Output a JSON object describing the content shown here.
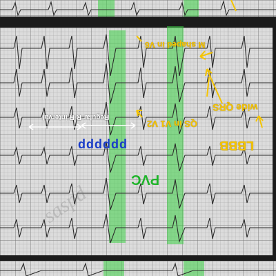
{
  "annotations": {
    "m_shaped": "M shaped in V6",
    "wide_qrs": "wide QRS",
    "lbbb": "LBBB",
    "qs_v1v2": "QS in V1 V2",
    "regular_rr": "Regular R-R interval",
    "p_waves": "pppppp",
    "pvc": "PVC"
  },
  "colors": {
    "annotation_yellow": "#f5c400",
    "highlight_green": "#3cd246",
    "p_wave_blue": "#1a3cc8",
    "pvc_green": "#1fb42a",
    "ecg_trace": "#2a2a2a"
  },
  "icons": {
    "arrow": "arrow-icon",
    "double_arrow": "double-arrow-icon"
  }
}
